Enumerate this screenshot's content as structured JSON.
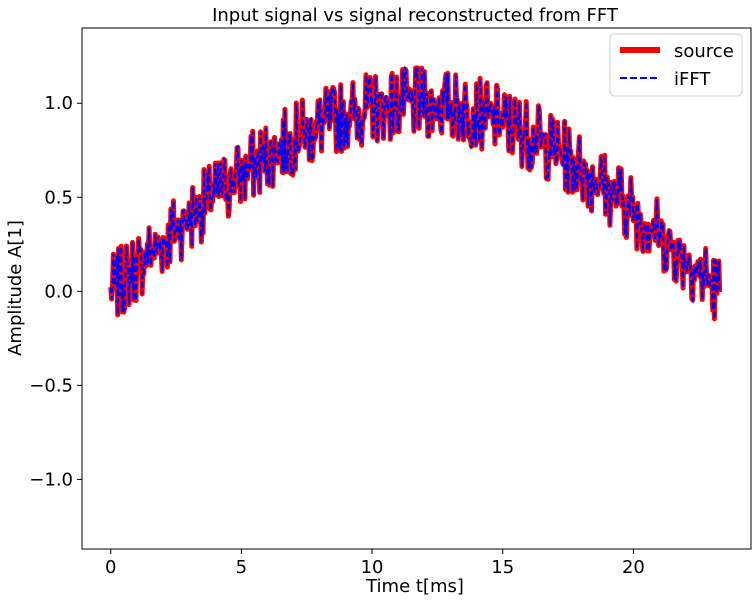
{
  "chart_data": {
    "type": "line",
    "title": "Input signal vs signal reconstructed from FFT",
    "xlabel": "Time t[ms]",
    "ylabel": "Amplitude A[1]",
    "xlim": [
      -1.1,
      24.5
    ],
    "ylim": [
      -1.37,
      1.4
    ],
    "xticks": [
      0,
      5,
      10,
      15,
      20
    ],
    "xtick_labels": [
      "0",
      "5",
      "10",
      "15",
      "20"
    ],
    "yticks": [
      -1.0,
      -0.5,
      0.0,
      0.5,
      1.0
    ],
    "ytick_labels": [
      "−1.0",
      "−0.5",
      "0.0",
      "0.5",
      "1.0"
    ],
    "grid": false,
    "legend_position": "top-right",
    "signal": {
      "t_start": 0,
      "t_end": 23.3,
      "period_ms": 46.6,
      "amplitude": 1.0,
      "noise": 0.28
    },
    "series": [
      {
        "name": "source",
        "color": "#ff0000",
        "style": "solid"
      },
      {
        "name": "iFFT",
        "color": "#0000ff",
        "style": "dashed"
      }
    ]
  }
}
